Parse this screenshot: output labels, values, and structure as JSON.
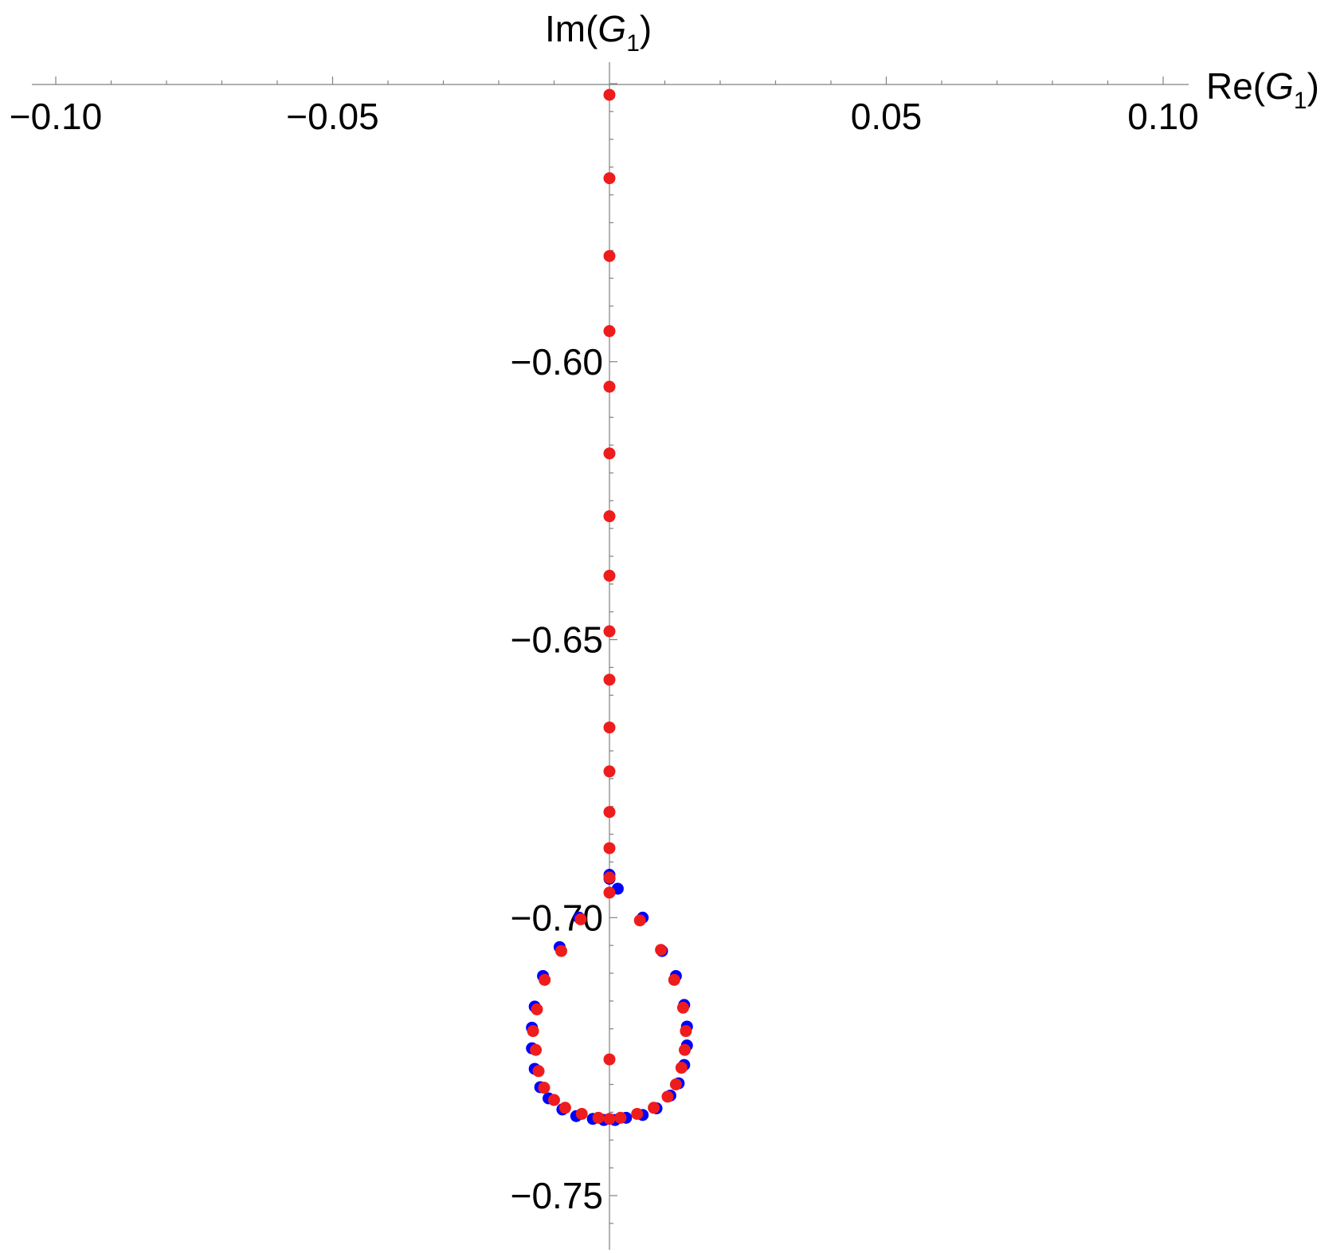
{
  "chart_data": {
    "type": "scatter",
    "title": "",
    "xlabel": {
      "pre": "Re(",
      "var": "G",
      "sub": "1",
      "post": ")"
    },
    "ylabel": {
      "pre": "Im(",
      "var": "G",
      "sub": "1",
      "post": ")"
    },
    "xlim": [
      -0.1,
      0.1
    ],
    "ylim": [
      -0.755,
      -0.55
    ],
    "x_ticks": [
      {
        "value": -0.1,
        "label": "−0.10"
      },
      {
        "value": -0.05,
        "label": "−0.05"
      },
      {
        "value": 0.05,
        "label": "0.05"
      },
      {
        "value": 0.1,
        "label": "0.10"
      }
    ],
    "y_ticks": [
      {
        "value": -0.6,
        "label": "−0.60"
      },
      {
        "value": -0.65,
        "label": "−0.65"
      },
      {
        "value": -0.7,
        "label": "−0.70"
      },
      {
        "value": -0.75,
        "label": "−0.75"
      }
    ],
    "grid": false,
    "series": [
      {
        "color": "#0000ff",
        "points": [
          [
            0.0,
            -0.6923
          ],
          [
            0.0015,
            -0.6948
          ],
          [
            0.006,
            -0.7
          ],
          [
            -0.0055,
            -0.7
          ],
          [
            0.0095,
            -0.706
          ],
          [
            -0.009,
            -0.7053
          ],
          [
            0.012,
            -0.7105
          ],
          [
            -0.012,
            -0.7105
          ],
          [
            0.0135,
            -0.7157
          ],
          [
            -0.0135,
            -0.716
          ],
          [
            0.014,
            -0.7196
          ],
          [
            -0.014,
            -0.7198
          ],
          [
            0.014,
            -0.723
          ],
          [
            -0.014,
            -0.7235
          ],
          [
            0.0135,
            -0.7265
          ],
          [
            -0.0135,
            -0.7272
          ],
          [
            0.0125,
            -0.7298
          ],
          [
            -0.0125,
            -0.7305
          ],
          [
            0.011,
            -0.732
          ],
          [
            -0.011,
            -0.7325
          ],
          [
            0.0085,
            -0.7343
          ],
          [
            -0.0085,
            -0.7345
          ],
          [
            0.006,
            -0.7355
          ],
          [
            -0.006,
            -0.7357
          ],
          [
            0.003,
            -0.736
          ],
          [
            -0.003,
            -0.7362
          ],
          [
            0.001,
            -0.7364
          ],
          [
            -0.001,
            -0.7364
          ],
          [
            0.0,
            -0.693
          ]
        ]
      },
      {
        "color": "#ee1c1c",
        "points": [
          [
            0.0,
            -0.552
          ],
          [
            0.0,
            -0.567
          ],
          [
            0.0,
            -0.581
          ],
          [
            0.0,
            -0.5945
          ],
          [
            0.0,
            -0.6045
          ],
          [
            0.0,
            -0.6165
          ],
          [
            0.0,
            -0.6278
          ],
          [
            0.0,
            -0.6385
          ],
          [
            0.0,
            -0.6485
          ],
          [
            0.0,
            -0.6572
          ],
          [
            0.0,
            -0.6658
          ],
          [
            0.0,
            -0.6737
          ],
          [
            0.0,
            -0.681
          ],
          [
            0.0,
            -0.6875
          ],
          [
            0.0,
            -0.6928
          ],
          [
            0.0,
            -0.6955
          ],
          [
            0.0,
            -0.7255
          ],
          [
            0.0055,
            -0.7005
          ],
          [
            -0.0052,
            -0.7003
          ],
          [
            0.0093,
            -0.7058
          ],
          [
            -0.0087,
            -0.706
          ],
          [
            0.0117,
            -0.7112
          ],
          [
            -0.0117,
            -0.7112
          ],
          [
            0.0133,
            -0.7162
          ],
          [
            -0.0131,
            -0.7165
          ],
          [
            0.0138,
            -0.7204
          ],
          [
            -0.0138,
            -0.7204
          ],
          [
            0.0136,
            -0.7238
          ],
          [
            -0.0133,
            -0.7238
          ],
          [
            0.013,
            -0.727
          ],
          [
            -0.0128,
            -0.7276
          ],
          [
            0.012,
            -0.73
          ],
          [
            -0.0118,
            -0.7306
          ],
          [
            0.0105,
            -0.7322
          ],
          [
            -0.01,
            -0.7328
          ],
          [
            0.008,
            -0.7342
          ],
          [
            -0.008,
            -0.7342
          ],
          [
            0.005,
            -0.7353
          ],
          [
            -0.005,
            -0.7353
          ],
          [
            0.002,
            -0.736
          ],
          [
            -0.002,
            -0.736
          ],
          [
            0.0,
            -0.7362
          ]
        ]
      }
    ]
  }
}
